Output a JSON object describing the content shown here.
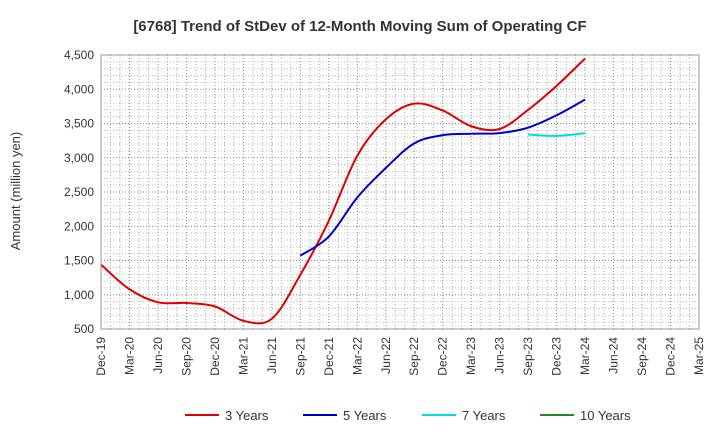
{
  "chart_data": {
    "type": "line",
    "title": "[6768]  Trend of StDev of 12-Month Moving Sum of Operating CF",
    "xlabel": "",
    "ylabel": "Amount (million yen)",
    "ylim": [
      500,
      4500
    ],
    "yticks": [
      500,
      1000,
      1500,
      2000,
      2500,
      3000,
      3500,
      4000,
      4500
    ],
    "ytick_labels": [
      "500",
      "1,000",
      "1,500",
      "2,000",
      "2,500",
      "3,000",
      "3,500",
      "4,000",
      "4,500"
    ],
    "categories": [
      "Dec-19",
      "Mar-20",
      "Jun-20",
      "Sep-20",
      "Dec-20",
      "Mar-21",
      "Jun-21",
      "Sep-21",
      "Dec-21",
      "Mar-22",
      "Jun-22",
      "Sep-22",
      "Dec-22",
      "Mar-23",
      "Jun-23",
      "Sep-23",
      "Dec-23",
      "Mar-24",
      "Jun-24",
      "Sep-24",
      "Dec-24",
      "Mar-25"
    ],
    "grid": true,
    "legend_position": "bottom",
    "series": [
      {
        "name": "3 Years",
        "color": "#dd0000",
        "values": [
          1440,
          1080,
          890,
          880,
          830,
          620,
          650,
          1290,
          2080,
          3030,
          3560,
          3790,
          3690,
          3460,
          3420,
          3700,
          4050,
          4450,
          null,
          null,
          null,
          null
        ]
      },
      {
        "name": "5 Years",
        "color": "#0000cc",
        "values": [
          null,
          null,
          null,
          null,
          null,
          null,
          null,
          1570,
          1850,
          2420,
          2850,
          3210,
          3330,
          3350,
          3360,
          3440,
          3620,
          3850,
          null,
          null,
          null,
          null
        ]
      },
      {
        "name": "7 Years",
        "color": "#00dddd",
        "values": [
          null,
          null,
          null,
          null,
          null,
          null,
          null,
          null,
          null,
          null,
          null,
          null,
          null,
          null,
          null,
          3340,
          3320,
          3360,
          null,
          null,
          null,
          null
        ]
      },
      {
        "name": "10 Years",
        "color": "#228822",
        "values": [
          null,
          null,
          null,
          null,
          null,
          null,
          null,
          null,
          null,
          null,
          null,
          null,
          null,
          null,
          null,
          null,
          null,
          null,
          null,
          null,
          null,
          null
        ]
      }
    ]
  }
}
